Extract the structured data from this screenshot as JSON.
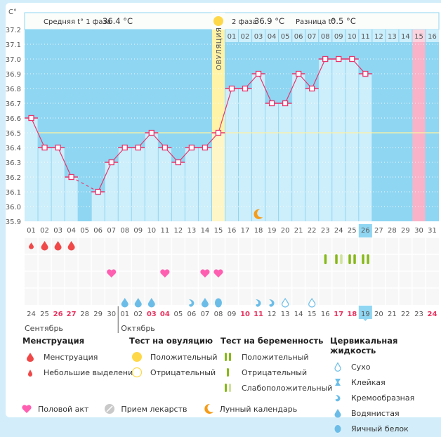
{
  "chart_data": {
    "type": "line",
    "yunit": "C°",
    "ylim": [
      35.9,
      37.2
    ],
    "yticks": [
      "37.2",
      "37.1",
      "37.0",
      "36.9",
      "36.8",
      "36.7",
      "36.6",
      "36.5",
      "36.4",
      "36.3",
      "36.2",
      "36.1",
      "36.0",
      "35.9"
    ],
    "cycle_days": [
      "01",
      "02",
      "03",
      "04",
      "05",
      "06",
      "07",
      "08",
      "09",
      "10",
      "11",
      "12",
      "13",
      "14",
      "15",
      "16",
      "17",
      "18",
      "19",
      "20",
      "21",
      "22",
      "23",
      "24",
      "25",
      "26",
      "27",
      "28",
      "29",
      "30",
      "31"
    ],
    "temperatures": [
      36.6,
      36.4,
      36.4,
      36.2,
      null,
      36.1,
      36.3,
      36.4,
      36.4,
      36.5,
      36.4,
      36.3,
      36.4,
      36.4,
      36.5,
      36.8,
      36.8,
      36.9,
      36.7,
      36.7,
      36.9,
      36.8,
      37.0,
      37.0,
      37.0,
      36.9,
      null,
      null,
      null,
      null,
      null
    ],
    "coverline": 36.5,
    "ovulation_day_index": 15,
    "ovulation_label": "ОВУЛЯЦИЯ",
    "next_period_day_index": 30,
    "today_cycle_day_index": 26,
    "phase1_label": "Средняя t° 1 фаза",
    "phase1_value": "36.4 °C",
    "phase2_label": "2 фаза",
    "phase2_value": "36.9 °C",
    "diff_label": "Разница t°",
    "diff_value": "0.5 °C",
    "phase2_header_days": [
      "01",
      "02",
      "03",
      "04",
      "05",
      "06",
      "07",
      "08",
      "09",
      "10",
      "11",
      "12",
      "13",
      "14",
      "15",
      "16"
    ],
    "phase2_header_highlight_index": 15,
    "menstruation": {
      "1": "light",
      "2": "heavy",
      "3": "heavy",
      "4": "heavy"
    },
    "pregnancy_tests": {
      "23": "negative",
      "24": "weak_positive",
      "25": "positive",
      "26": "positive"
    },
    "intercourse_days": [
      7,
      11,
      14,
      15
    ],
    "cervical_fluid": {
      "8": "watery",
      "9": "watery",
      "10": "watery",
      "13": "creamy",
      "14": "watery",
      "15": "egg_white",
      "18": "creamy",
      "19": "creamy",
      "20": "dry",
      "22": "dry"
    },
    "moon_days": [
      18
    ],
    "calendar_dates": [
      {
        "d": "24",
        "red": false
      },
      {
        "d": "25",
        "red": false
      },
      {
        "d": "26",
        "red": true
      },
      {
        "d": "27",
        "red": true
      },
      {
        "d": "28",
        "red": false
      },
      {
        "d": "29",
        "red": false
      },
      {
        "d": "30",
        "red": false
      },
      {
        "d": "01",
        "red": false
      },
      {
        "d": "02",
        "red": false
      },
      {
        "d": "03",
        "red": true
      },
      {
        "d": "04",
        "red": true
      },
      {
        "d": "05",
        "red": false
      },
      {
        "d": "06",
        "red": false
      },
      {
        "d": "07",
        "red": false
      },
      {
        "d": "08",
        "red": false
      },
      {
        "d": "09",
        "red": false
      },
      {
        "d": "10",
        "red": true
      },
      {
        "d": "11",
        "red": true
      },
      {
        "d": "12",
        "red": false
      },
      {
        "d": "13",
        "red": false
      },
      {
        "d": "14",
        "red": false
      },
      {
        "d": "15",
        "red": false
      },
      {
        "d": "16",
        "red": false
      },
      {
        "d": "17",
        "red": true
      },
      {
        "d": "18",
        "red": true
      },
      {
        "d": "19",
        "red": false
      },
      {
        "d": "20",
        "red": false
      },
      {
        "d": "21",
        "red": false
      },
      {
        "d": "22",
        "red": false
      },
      {
        "d": "23",
        "red": false
      },
      {
        "d": "24",
        "red": true
      }
    ],
    "today_calendar_index": 26,
    "month1": "Сентябрь",
    "month2": "Октябрь"
  },
  "colors": {
    "plot_bg": "#8fd6f2",
    "bar_fill": "#cdeefb",
    "line": "#e8356b",
    "coverline": "#fff2a0",
    "ovulation": "#fff3a8",
    "period": "#f9b2c7",
    "blood": "#f04848",
    "heart": "#ff5fb1",
    "fluid": "#6bbde8",
    "preg": "#86b817",
    "preg_light": "#cfe29b",
    "moon": "#f59c1a",
    "sun": "#ffd84a",
    "red_date": "#e8335f"
  },
  "legend": {
    "menstruation": {
      "title": "Менструация",
      "items": [
        "Менструация",
        "Небольшие выделения"
      ]
    },
    "ovulation_test": {
      "title": "Тест на овуляцию",
      "items": [
        "Положительный",
        "Отрицательный"
      ]
    },
    "pregnancy_test": {
      "title": "Тест на беременность",
      "items": [
        "Положительный",
        "Отрицательный",
        "Слабоположительный"
      ]
    },
    "cervical_fluid": {
      "title": "Цервикальная жидкость",
      "items": [
        "Сухо",
        "Клейкая",
        "Кремообразная",
        "Водянистая",
        "Яичный белок"
      ]
    },
    "bottom": [
      "Половой акт",
      "Прием лекарств",
      "Лунный календарь"
    ]
  }
}
